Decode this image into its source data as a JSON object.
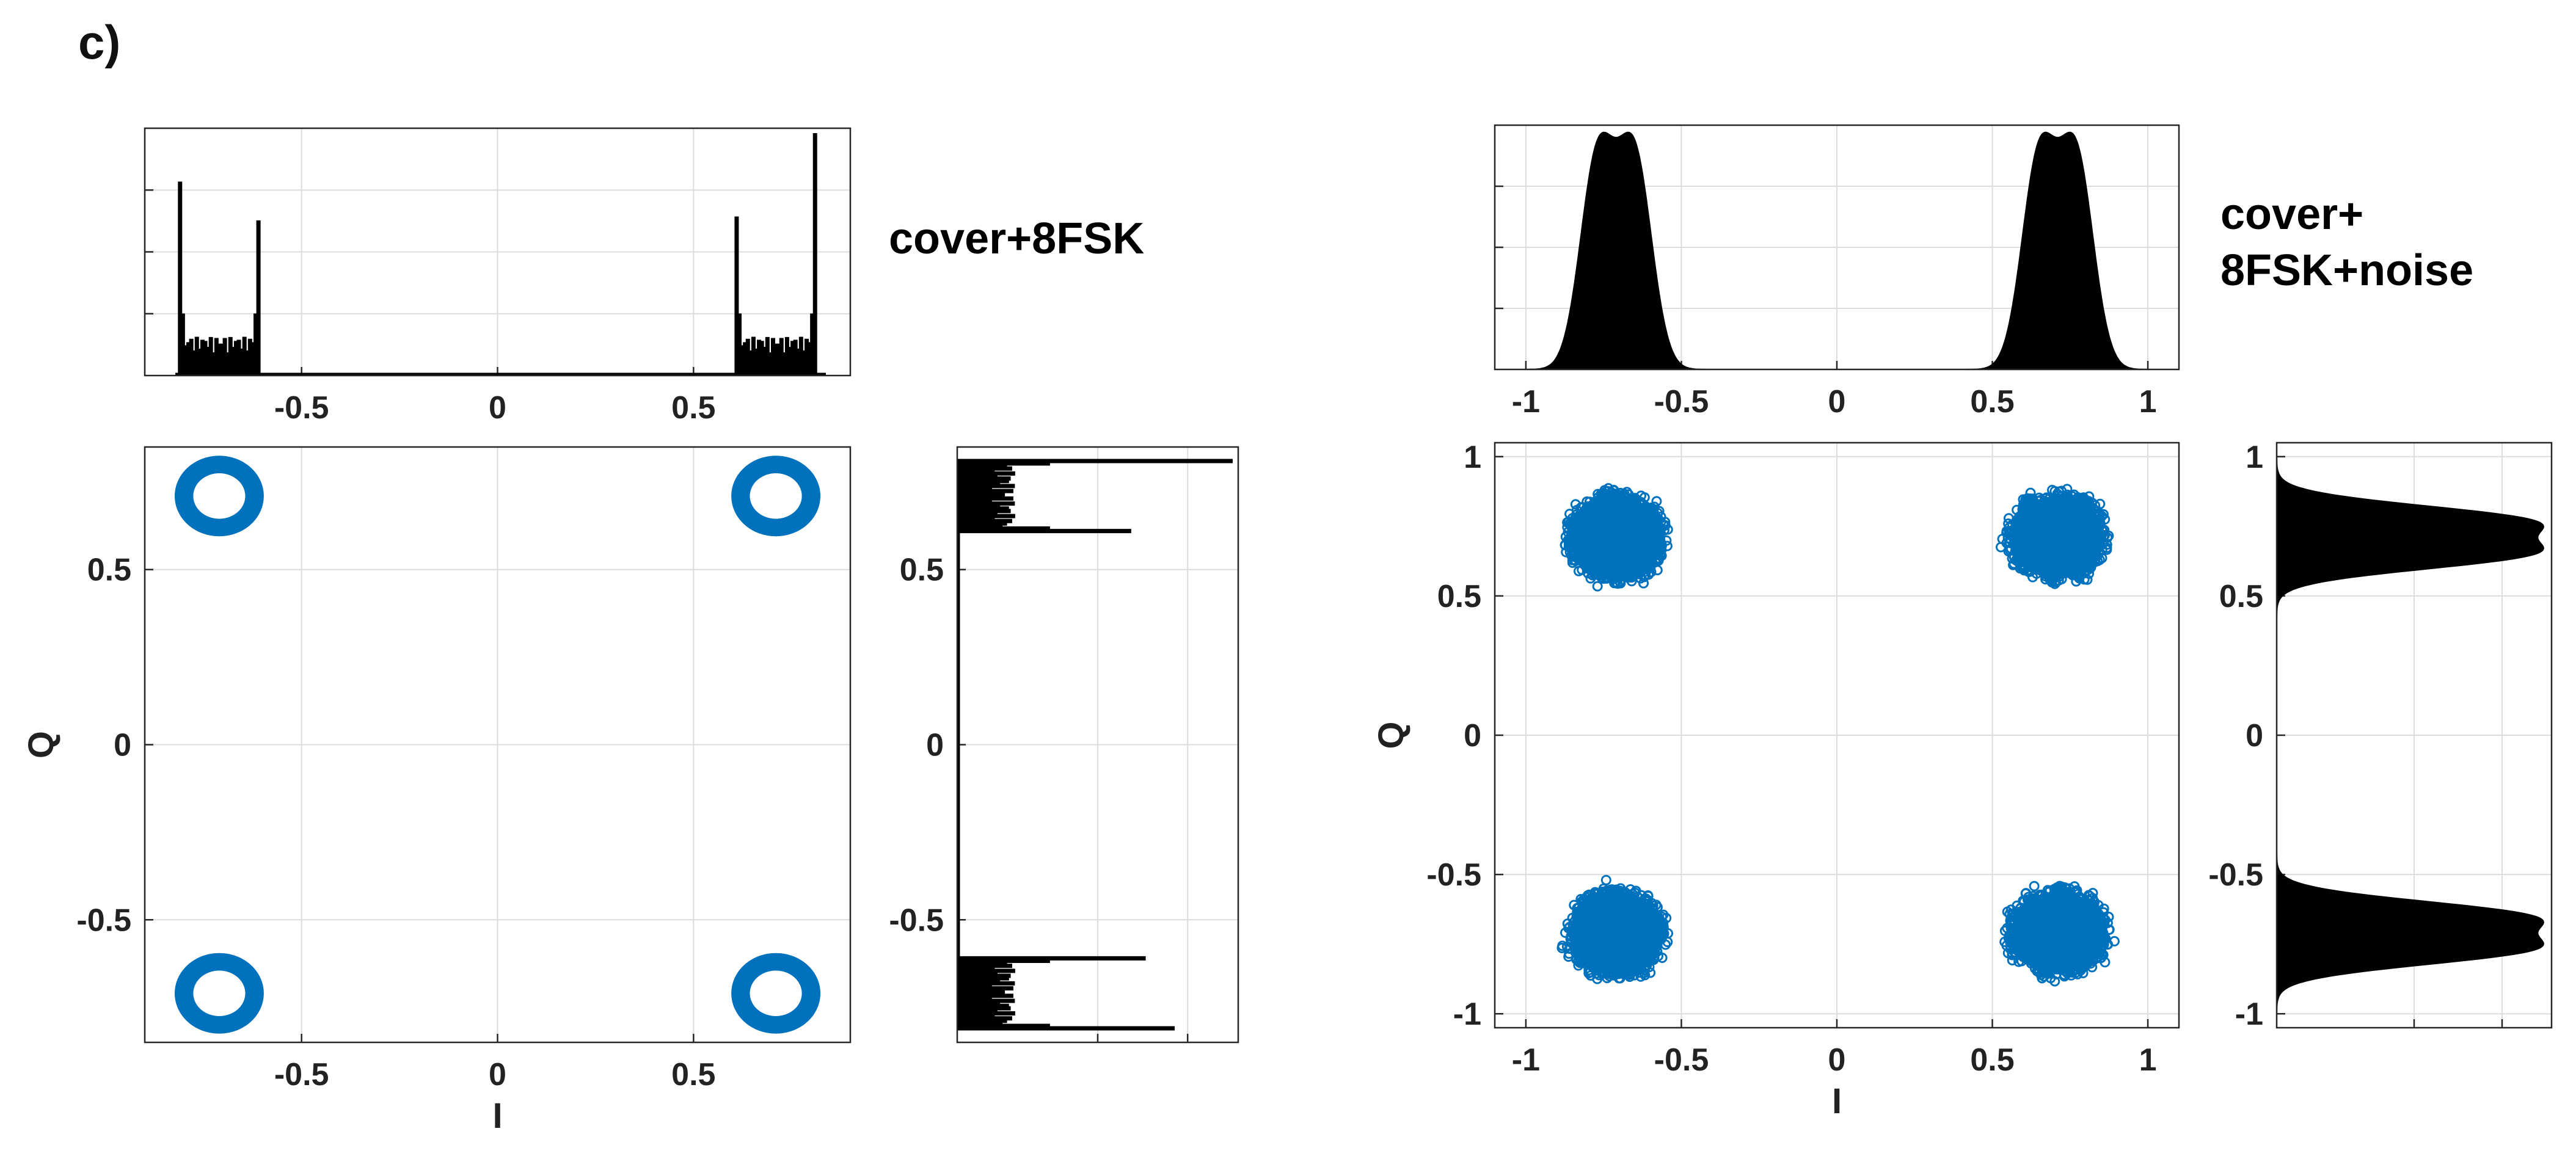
{
  "panel_label": "c)",
  "colors": {
    "scatter": "#0072BD",
    "histogram": "#000000",
    "grid": "#DCDCDC",
    "axis": "#262626"
  },
  "chart_data": [
    {
      "type": "scatter",
      "annotation": [
        "cover+8FSK"
      ],
      "xlabel": "I",
      "ylabel": "Q",
      "xlim": [
        -0.9,
        0.9
      ],
      "ylim": [
        -0.85,
        0.85
      ],
      "xticks": [
        -0.5,
        0,
        0.5
      ],
      "xtick_labels": [
        "-0.5",
        "0",
        "0.5"
      ],
      "yticks": [
        -0.5,
        0,
        0.5
      ],
      "ytick_labels": [
        "-0.5",
        "0",
        "0.5"
      ],
      "grid": true,
      "points": {
        "description_free": true,
        "clusters": [
          {
            "center": [
              -0.71,
              0.71
            ],
            "ring_radius": 0.09
          },
          {
            "center": [
              0.71,
              0.71
            ],
            "ring_radius": 0.09
          },
          {
            "center": [
              -0.71,
              -0.71
            ],
            "ring_radius": 0.09
          },
          {
            "center": [
              0.71,
              -0.71
            ],
            "ring_radius": 0.09
          }
        ]
      },
      "marginal_x": {
        "type": "histogram",
        "xlim": [
          -0.9,
          0.9
        ],
        "xticks": [
          -0.5,
          0,
          0.5
        ],
        "xtick_labels": [
          "-0.5",
          "0",
          "0.5"
        ],
        "support": [
          [
            -0.81,
            -0.61
          ],
          [
            0.61,
            0.81
          ]
        ],
        "edge_peaks": [
          1.0,
          0.8,
          0.82,
          1.25
        ],
        "floor_level": 0.2
      },
      "marginal_y": {
        "type": "histogram",
        "ylim": [
          -0.85,
          0.85
        ],
        "yticks": [
          -0.5,
          0,
          0.5
        ],
        "ytick_labels": [
          "-0.5",
          "0",
          "0.5"
        ],
        "support": [
          [
            -0.81,
            -0.61
          ],
          [
            0.61,
            0.81
          ]
        ],
        "edge_peaks": [
          0.75,
          0.65,
          0.6,
          0.95
        ],
        "floor_level": 0.2
      }
    },
    {
      "type": "scatter",
      "annotation": [
        "cover+",
        "8FSK+noise"
      ],
      "xlabel": "I",
      "ylabel": "Q",
      "xlim": [
        -1.1,
        1.1
      ],
      "ylim": [
        -1.05,
        1.05
      ],
      "xticks": [
        -1,
        -0.5,
        0,
        0.5,
        1
      ],
      "xtick_labels": [
        "-1",
        "-0.5",
        "0",
        "0.5",
        "1"
      ],
      "yticks": [
        -1,
        -0.5,
        0,
        0.5,
        1
      ],
      "ytick_labels": [
        "-1",
        "-0.5",
        "0",
        "0.5",
        "1"
      ],
      "grid": true,
      "points": {
        "clusters": [
          {
            "center": [
              -0.71,
              0.71
            ],
            "spread": 0.16
          },
          {
            "center": [
              0.71,
              0.71
            ],
            "spread": 0.16
          },
          {
            "center": [
              -0.71,
              -0.71
            ],
            "spread": 0.16
          },
          {
            "center": [
              0.71,
              -0.71
            ],
            "spread": 0.16
          }
        ]
      },
      "marginal_x": {
        "type": "histogram",
        "xlim": [
          -1.1,
          1.1
        ],
        "xticks": [
          -1,
          -0.5,
          0,
          0.5,
          1
        ],
        "xtick_labels": [
          "-1",
          "-0.5",
          "0",
          "0.5",
          "1"
        ],
        "peaks": [
          -0.77,
          -0.65,
          0.65,
          0.77
        ]
      },
      "marginal_y": {
        "type": "histogram",
        "ylim": [
          -1.05,
          1.05
        ],
        "yticks": [
          -1,
          -0.5,
          0,
          0.5,
          1
        ],
        "ytick_labels": [
          "-1",
          "-0.5",
          "0",
          "0.5",
          "1"
        ],
        "peaks": [
          -0.77,
          -0.65,
          0.65,
          0.77
        ]
      }
    }
  ]
}
